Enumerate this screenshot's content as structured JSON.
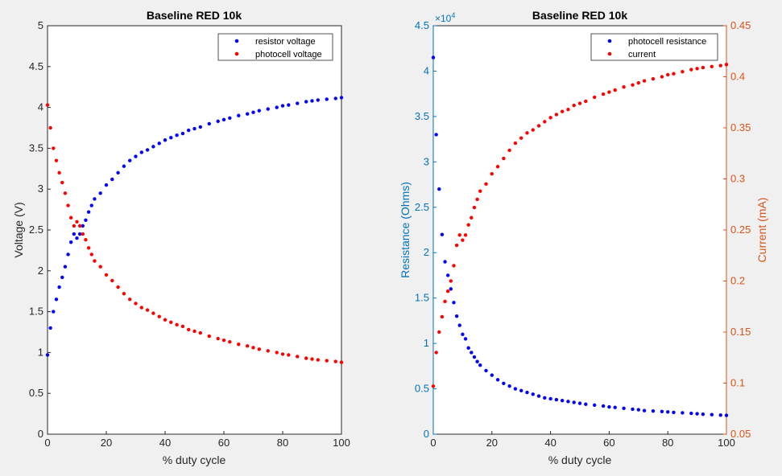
{
  "chart_data": [
    {
      "type": "scatter",
      "title": "Baseline RED 10k",
      "xlabel": "% duty cycle",
      "ylabel": "Voltage (V)",
      "xlim": [
        0,
        100
      ],
      "ylim": [
        0,
        5
      ],
      "xticks": [
        "0",
        "20",
        "40",
        "60",
        "80",
        "100"
      ],
      "yticks": [
        "0",
        "0.5",
        "1",
        "1.5",
        "2",
        "2.5",
        "3",
        "3.5",
        "4",
        "4.5",
        "5"
      ],
      "legend_position": "top-right",
      "series": [
        {
          "name": "resistor voltage",
          "color": "#0000ff",
          "x": [
            0,
            1,
            2,
            3,
            4,
            5,
            6,
            7,
            8,
            9,
            10,
            11,
            12,
            13,
            14,
            15,
            16,
            18,
            20,
            22,
            24,
            26,
            28,
            30,
            32,
            34,
            36,
            38,
            40,
            42,
            44,
            46,
            48,
            50,
            52,
            55,
            58,
            60,
            62,
            65,
            68,
            70,
            72,
            75,
            78,
            80,
            82,
            85,
            88,
            90,
            92,
            95,
            98,
            100
          ],
          "y": [
            0.97,
            1.3,
            1.5,
            1.65,
            1.8,
            1.92,
            2.05,
            2.2,
            2.35,
            2.45,
            2.4,
            2.45,
            2.55,
            2.62,
            2.72,
            2.8,
            2.88,
            2.95,
            3.05,
            3.12,
            3.2,
            3.28,
            3.35,
            3.4,
            3.45,
            3.48,
            3.52,
            3.56,
            3.6,
            3.63,
            3.66,
            3.68,
            3.72,
            3.74,
            3.76,
            3.8,
            3.83,
            3.85,
            3.87,
            3.9,
            3.92,
            3.94,
            3.96,
            3.98,
            4.0,
            4.02,
            4.03,
            4.05,
            4.07,
            4.08,
            4.09,
            4.1,
            4.11,
            4.12
          ]
        },
        {
          "name": "photocell voltage",
          "color": "#ff0000",
          "x": [
            0,
            1,
            2,
            3,
            4,
            5,
            6,
            7,
            8,
            9,
            10,
            11,
            12,
            13,
            14,
            15,
            16,
            18,
            20,
            22,
            24,
            26,
            28,
            30,
            32,
            34,
            36,
            38,
            40,
            42,
            44,
            46,
            48,
            50,
            52,
            55,
            58,
            60,
            62,
            65,
            68,
            70,
            72,
            75,
            78,
            80,
            82,
            85,
            88,
            90,
            92,
            95,
            98,
            100
          ],
          "y": [
            4.03,
            3.75,
            3.5,
            3.35,
            3.2,
            3.08,
            2.95,
            2.8,
            2.65,
            2.55,
            2.6,
            2.55,
            2.45,
            2.38,
            2.28,
            2.2,
            2.12,
            2.05,
            1.95,
            1.88,
            1.8,
            1.72,
            1.65,
            1.6,
            1.55,
            1.52,
            1.48,
            1.44,
            1.4,
            1.37,
            1.34,
            1.32,
            1.28,
            1.26,
            1.24,
            1.2,
            1.17,
            1.15,
            1.13,
            1.1,
            1.08,
            1.06,
            1.04,
            1.02,
            1.0,
            0.98,
            0.97,
            0.95,
            0.93,
            0.92,
            0.91,
            0.9,
            0.89,
            0.88
          ]
        }
      ]
    },
    {
      "type": "scatter",
      "title": "Baseline RED 10k",
      "xlabel": "% duty cycle",
      "ylabel": "Resistance (Ohms)",
      "ylabel_right": "Current (mA)",
      "xlim": [
        0,
        100
      ],
      "ylim": [
        0,
        45000
      ],
      "ylim_right": [
        0.05,
        0.45
      ],
      "xticks": [
        "0",
        "20",
        "40",
        "60",
        "80",
        "100"
      ],
      "yticks": [
        "0",
        "0.5",
        "1",
        "1.5",
        "2",
        "2.5",
        "3",
        "3.5",
        "4",
        "4.5"
      ],
      "yticks_right": [
        "0.05",
        "0.1",
        "0.15",
        "0.2",
        "0.25",
        "0.3",
        "0.35",
        "0.4",
        "0.45"
      ],
      "y_exponent_label": "×10",
      "y_exponent_power": "4",
      "legend_position": "top-right",
      "left_axis_color": "#0072bd",
      "right_axis_color": "#d95319",
      "series": [
        {
          "name": "photocell resistance",
          "color": "#0000ff",
          "axis": "left",
          "x": [
            0,
            1,
            2,
            3,
            4,
            5,
            6,
            7,
            8,
            9,
            10,
            11,
            12,
            13,
            14,
            15,
            16,
            18,
            20,
            22,
            24,
            26,
            28,
            30,
            32,
            34,
            36,
            38,
            40,
            42,
            44,
            46,
            48,
            50,
            52,
            55,
            58,
            60,
            62,
            65,
            68,
            70,
            72,
            75,
            78,
            80,
            82,
            85,
            88,
            90,
            92,
            95,
            98,
            100
          ],
          "y": [
            41500,
            33000,
            27000,
            22000,
            19000,
            17500,
            16000,
            14500,
            13000,
            12000,
            11000,
            10500,
            9500,
            9000,
            8500,
            8000,
            7600,
            7000,
            6500,
            6000,
            5600,
            5300,
            5000,
            4800,
            4600,
            4400,
            4200,
            4000,
            3900,
            3800,
            3700,
            3600,
            3500,
            3400,
            3300,
            3200,
            3100,
            3000,
            2950,
            2850,
            2750,
            2700,
            2600,
            2550,
            2500,
            2450,
            2400,
            2350,
            2300,
            2250,
            2200,
            2150,
            2100,
            2080
          ]
        },
        {
          "name": "current",
          "color": "#ff0000",
          "axis": "right",
          "x": [
            0,
            1,
            2,
            3,
            4,
            5,
            6,
            7,
            8,
            9,
            10,
            11,
            12,
            13,
            14,
            15,
            16,
            18,
            20,
            22,
            24,
            26,
            28,
            30,
            32,
            34,
            36,
            38,
            40,
            42,
            44,
            46,
            48,
            50,
            52,
            55,
            58,
            60,
            62,
            65,
            68,
            70,
            72,
            75,
            78,
            80,
            82,
            85,
            88,
            90,
            92,
            95,
            98,
            100
          ],
          "y": [
            0.097,
            0.13,
            0.15,
            0.165,
            0.18,
            0.19,
            0.2,
            0.215,
            0.235,
            0.245,
            0.24,
            0.245,
            0.255,
            0.262,
            0.272,
            0.28,
            0.288,
            0.295,
            0.305,
            0.312,
            0.32,
            0.328,
            0.335,
            0.34,
            0.345,
            0.348,
            0.352,
            0.356,
            0.36,
            0.363,
            0.366,
            0.368,
            0.372,
            0.374,
            0.376,
            0.38,
            0.383,
            0.385,
            0.387,
            0.39,
            0.392,
            0.394,
            0.396,
            0.398,
            0.4,
            0.402,
            0.403,
            0.405,
            0.407,
            0.408,
            0.409,
            0.41,
            0.411,
            0.412
          ]
        }
      ]
    }
  ]
}
